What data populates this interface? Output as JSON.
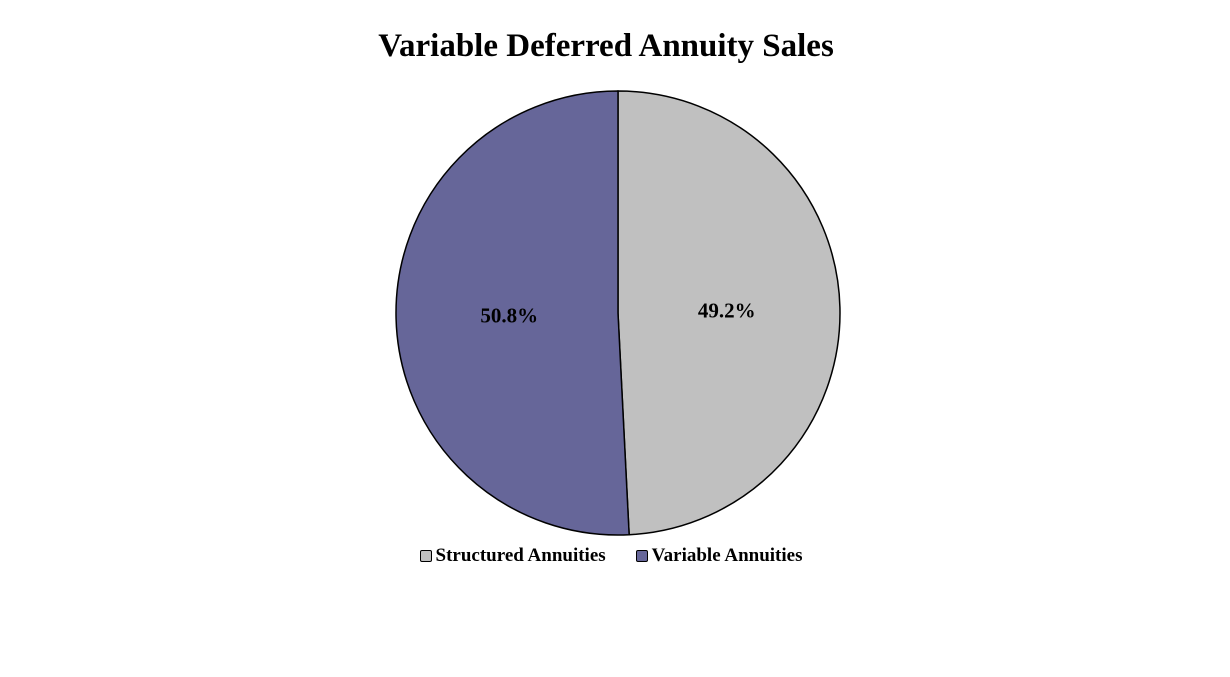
{
  "chart_data": {
    "type": "pie",
    "title": "Variable Deferred Annuity Sales",
    "slices": [
      {
        "label": "Structured Annuities",
        "value": 49.2,
        "display": "49.2%",
        "color": "#c0c0c0"
      },
      {
        "label": "Variable Annuities",
        "value": 50.8,
        "display": "50.8%",
        "color": "#666699"
      }
    ],
    "legend_position": "bottom"
  }
}
